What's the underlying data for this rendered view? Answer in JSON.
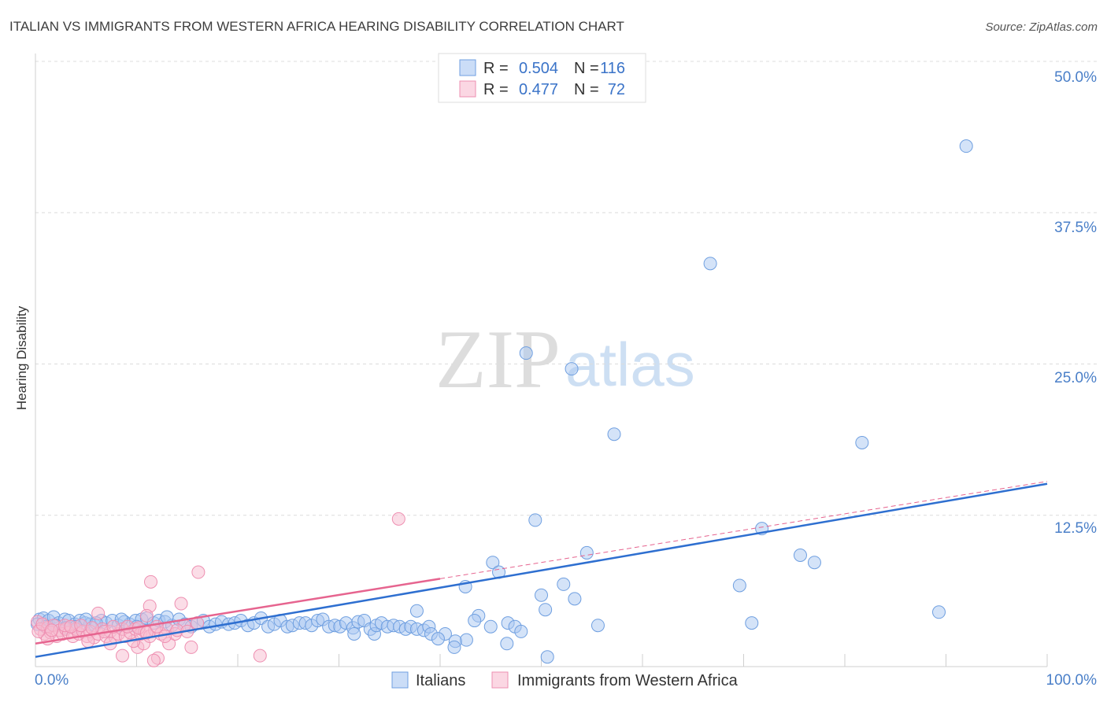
{
  "source": "Source: ZipAtlas.com",
  "watermark": {
    "zip": "ZIP",
    "atlas": "atlas"
  },
  "legend": {
    "r_label": "R =",
    "n_label": "N ="
  },
  "colors": {
    "italians_fill": "#a9c7f2",
    "italians_stroke": "#6f9fe0",
    "italians_line": "#2e6fd0",
    "waf_fill": "#f8bcd0",
    "waf_stroke": "#ee8fb1",
    "waf_line": "#e6648f",
    "accent_text": "#4a7fc8",
    "legend_value": "#3a73c8"
  },
  "chart_data": {
    "type": "scatter",
    "title": "ITALIAN VS IMMIGRANTS FROM WESTERN AFRICA HEARING DISABILITY CORRELATION CHART",
    "xlabel": "",
    "ylabel": "Hearing Disability",
    "xlim": [
      0,
      100
    ],
    "ylim": [
      0,
      50
    ],
    "x_tick_labels": [
      "0.0%",
      "100.0%"
    ],
    "y_ticks": [
      50,
      37.5,
      25,
      12.5
    ],
    "y_tick_labels": [
      "50.0%",
      "37.5%",
      "25.0%",
      "12.5%"
    ],
    "grid": true,
    "legend_position": "bottom",
    "series": [
      {
        "name": "Italians",
        "r": 0.504,
        "n": 116,
        "trend": {
          "intercept": 0.8,
          "slope": 0.143
        },
        "points": [
          [
            0.4,
            3.9
          ],
          [
            0.8,
            4.0
          ],
          [
            1.3,
            3.8
          ],
          [
            1.8,
            4.1
          ],
          [
            2.3,
            3.6
          ],
          [
            2.9,
            3.9
          ],
          [
            3.3,
            3.8
          ],
          [
            3.9,
            3.5
          ],
          [
            4.4,
            3.8
          ],
          [
            4.9,
            3.6
          ],
          [
            5.4,
            3.5
          ],
          [
            5.9,
            3.4
          ],
          [
            6.5,
            3.8
          ],
          [
            7.0,
            3.6
          ],
          [
            7.6,
            3.8
          ],
          [
            8.2,
            3.4
          ],
          [
            8.8,
            3.7
          ],
          [
            9.3,
            3.5
          ],
          [
            9.9,
            3.8
          ],
          [
            10.5,
            3.9
          ],
          [
            11.0,
            4.0
          ],
          [
            11.7,
            3.6
          ],
          [
            12.2,
            3.8
          ],
          [
            12.8,
            3.7
          ],
          [
            13.5,
            3.4
          ],
          [
            14.2,
            3.9
          ],
          [
            14.8,
            3.5
          ],
          [
            15.4,
            3.3
          ],
          [
            16.0,
            3.6
          ],
          [
            16.6,
            3.8
          ],
          [
            17.2,
            3.3
          ],
          [
            17.8,
            3.5
          ],
          [
            18.4,
            3.7
          ],
          [
            19.1,
            3.5
          ],
          [
            19.7,
            3.6
          ],
          [
            20.3,
            3.8
          ],
          [
            21.0,
            3.4
          ],
          [
            21.6,
            3.6
          ],
          [
            22.3,
            4.0
          ],
          [
            23.0,
            3.3
          ],
          [
            23.6,
            3.5
          ],
          [
            24.2,
            3.8
          ],
          [
            24.9,
            3.3
          ],
          [
            25.4,
            3.4
          ],
          [
            26.1,
            3.6
          ],
          [
            26.7,
            3.6
          ],
          [
            27.3,
            3.4
          ],
          [
            27.9,
            3.8
          ],
          [
            28.4,
            3.9
          ],
          [
            29.0,
            3.3
          ],
          [
            29.6,
            3.4
          ],
          [
            30.1,
            3.3
          ],
          [
            30.7,
            3.6
          ],
          [
            31.4,
            3.2
          ],
          [
            31.5,
            2.7
          ],
          [
            31.9,
            3.7
          ],
          [
            32.5,
            3.8
          ],
          [
            33.1,
            3.1
          ],
          [
            33.5,
            2.7
          ],
          [
            33.7,
            3.4
          ],
          [
            34.2,
            3.6
          ],
          [
            34.8,
            3.3
          ],
          [
            35.4,
            3.4
          ],
          [
            36.0,
            3.3
          ],
          [
            36.6,
            3.1
          ],
          [
            37.1,
            3.3
          ],
          [
            37.7,
            3.1
          ],
          [
            38.4,
            3.0
          ],
          [
            38.9,
            3.3
          ],
          [
            0.2,
            3.5
          ],
          [
            1.0,
            3.3
          ],
          [
            2.0,
            3.4
          ],
          [
            3.0,
            3.2
          ],
          [
            4.0,
            3.3
          ],
          [
            5.0,
            3.9
          ],
          [
            6.0,
            3.6
          ],
          [
            8.5,
            3.9
          ],
          [
            10.0,
            3.3
          ],
          [
            13.0,
            4.1
          ],
          [
            92.0,
            43.0
          ],
          [
            66.7,
            33.3
          ],
          [
            48.5,
            25.9
          ],
          [
            53.0,
            24.6
          ],
          [
            57.2,
            19.2
          ],
          [
            81.7,
            18.5
          ],
          [
            49.4,
            12.1
          ],
          [
            71.8,
            11.4
          ],
          [
            54.5,
            9.4
          ],
          [
            75.6,
            9.2
          ],
          [
            77.0,
            8.6
          ],
          [
            45.2,
            8.6
          ],
          [
            45.8,
            7.8
          ],
          [
            69.6,
            6.7
          ],
          [
            52.2,
            6.8
          ],
          [
            42.5,
            6.6
          ],
          [
            50.0,
            5.9
          ],
          [
            53.3,
            5.6
          ],
          [
            50.4,
            4.7
          ],
          [
            89.3,
            4.5
          ],
          [
            37.7,
            4.6
          ],
          [
            43.8,
            4.2
          ],
          [
            46.7,
            3.6
          ],
          [
            70.8,
            3.6
          ],
          [
            55.6,
            3.4
          ],
          [
            43.4,
            3.8
          ],
          [
            45.0,
            3.3
          ],
          [
            47.4,
            3.3
          ],
          [
            48.0,
            2.9
          ],
          [
            40.5,
            2.7
          ],
          [
            39.1,
            2.7
          ],
          [
            39.8,
            2.3
          ],
          [
            42.6,
            2.2
          ],
          [
            41.5,
            2.1
          ],
          [
            41.4,
            1.6
          ],
          [
            46.6,
            1.9
          ],
          [
            50.6,
            0.8
          ]
        ]
      },
      {
        "name": "Immigrants from Western Africa",
        "r": 0.477,
        "n": 72,
        "trend": {
          "intercept": 1.9,
          "slope": 0.134,
          "solid_until": 40
        },
        "points": [
          [
            35.9,
            12.2
          ],
          [
            16.1,
            7.8
          ],
          [
            11.4,
            7.0
          ],
          [
            14.4,
            5.2
          ],
          [
            11.3,
            5.0
          ],
          [
            6.2,
            4.4
          ],
          [
            11.0,
            4.2
          ],
          [
            22.2,
            0.9
          ],
          [
            15.4,
            1.6
          ],
          [
            10.1,
            1.6
          ],
          [
            8.6,
            0.9
          ],
          [
            12.1,
            0.7
          ],
          [
            11.7,
            0.5
          ],
          [
            13.2,
            1.9
          ],
          [
            10.7,
            1.9
          ],
          [
            9.7,
            2.1
          ],
          [
            0.2,
            3.7
          ],
          [
            0.5,
            3.1
          ],
          [
            0.9,
            2.7
          ],
          [
            1.2,
            3.2
          ],
          [
            1.5,
            2.8
          ],
          [
            1.8,
            3.4
          ],
          [
            2.1,
            2.5
          ],
          [
            2.4,
            3.0
          ],
          [
            2.7,
            2.7
          ],
          [
            3.0,
            3.1
          ],
          [
            3.3,
            2.8
          ],
          [
            3.7,
            2.5
          ],
          [
            4.0,
            3.1
          ],
          [
            4.3,
            2.7
          ],
          [
            4.7,
            2.9
          ],
          [
            5.1,
            2.5
          ],
          [
            5.4,
            2.9
          ],
          [
            5.8,
            2.4
          ],
          [
            6.2,
            2.7
          ],
          [
            6.6,
            3.1
          ],
          [
            7.0,
            2.5
          ],
          [
            7.4,
            2.9
          ],
          [
            7.9,
            2.4
          ],
          [
            8.2,
            2.7
          ],
          [
            8.6,
            3.1
          ],
          [
            8.9,
            2.5
          ],
          [
            9.4,
            2.8
          ],
          [
            9.9,
            3.1
          ],
          [
            10.4,
            2.7
          ],
          [
            10.8,
            2.9
          ],
          [
            11.3,
            2.5
          ],
          [
            11.8,
            3.0
          ],
          [
            12.4,
            2.7
          ],
          [
            13.0,
            3.1
          ],
          [
            13.8,
            2.7
          ],
          [
            14.7,
            3.4
          ],
          [
            16.0,
            3.6
          ],
          [
            7.4,
            1.9
          ],
          [
            1.2,
            2.3
          ],
          [
            5.2,
            2.1
          ],
          [
            0.3,
            2.9
          ],
          [
            0.7,
            3.5
          ],
          [
            1.6,
            3.0
          ],
          [
            2.9,
            3.4
          ],
          [
            3.5,
            3.3
          ],
          [
            4.5,
            3.4
          ],
          [
            5.6,
            3.2
          ],
          [
            6.8,
            2.9
          ],
          [
            7.7,
            3.3
          ],
          [
            9.1,
            3.3
          ],
          [
            10.2,
            3.2
          ],
          [
            11.0,
            2.8
          ],
          [
            12.0,
            3.3
          ],
          [
            12.8,
            2.5
          ],
          [
            14.0,
            3.0
          ],
          [
            15.0,
            2.9
          ]
        ]
      }
    ]
  }
}
